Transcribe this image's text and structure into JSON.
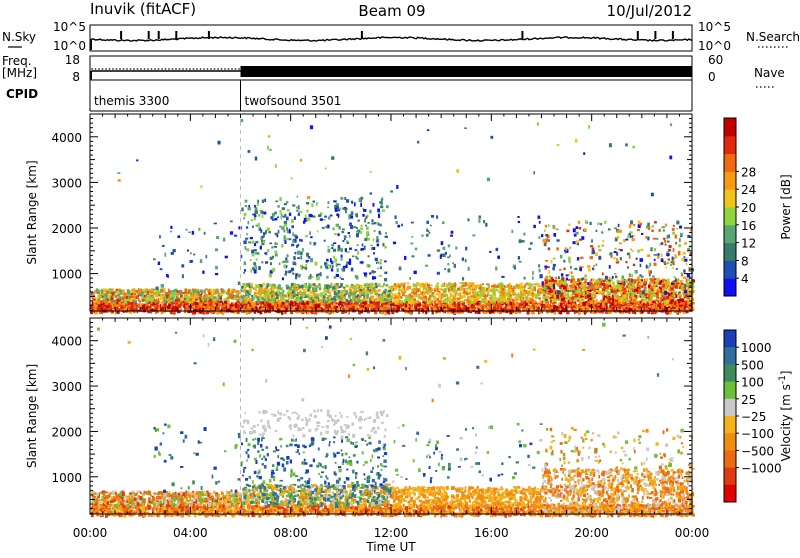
{
  "header": {
    "station": "Inuvik (fitACF)",
    "beam": "Beam 09",
    "date": "10/Jul/2012"
  },
  "strips": {
    "nsky": {
      "left_label": "N.Sky",
      "right_label": "N.Search",
      "left_ticks": [
        "10^5",
        "10^0"
      ],
      "right_ticks": [
        "10^5",
        "10^0"
      ]
    },
    "freq": {
      "left_label_line1": "Freq.",
      "left_label_line2": "[MHz]",
      "right_label": "Nave",
      "left_ticks": [
        "18",
        "8"
      ],
      "right_ticks": [
        "60",
        "0"
      ]
    },
    "cpid": {
      "label": "CPID",
      "modes": [
        {
          "name": "themis 3300",
          "start_hour": 0
        },
        {
          "name": "twofsound 3501",
          "start_hour": 6
        }
      ]
    }
  },
  "chart_data": [
    {
      "type": "heatmap",
      "parameter": "Power",
      "ylabel": "Slant Range [km]",
      "ylim": [
        180,
        4500
      ],
      "yticks": [
        1000,
        2000,
        3000,
        4000
      ],
      "xlim_hours": [
        0,
        24
      ],
      "colorbar": {
        "label": "Power [dB]",
        "tick_labels": [
          "4",
          "8",
          "12",
          "16",
          "20",
          "24",
          "28"
        ],
        "colors": [
          "#1010f0",
          "#1d4fb5",
          "#3a7a6a",
          "#56a870",
          "#8fd440",
          "#f0c419",
          "#f59a12",
          "#ef6a10",
          "#e02a10",
          "#c00000"
        ]
      },
      "features": [
        {
          "hours": [
            0,
            24
          ],
          "range_km": [
            180,
            700
          ],
          "level_db": "20-28"
        },
        {
          "hours": [
            6,
            11.8
          ],
          "range_km": [
            700,
            2700
          ],
          "level_db": "8-16"
        },
        {
          "hours": [
            18,
            24
          ],
          "range_km": [
            500,
            2200
          ],
          "level_db": "8-24"
        }
      ]
    },
    {
      "type": "heatmap",
      "parameter": "Velocity",
      "ylabel": "Slant Range [km]",
      "ylim": [
        180,
        4500
      ],
      "yticks": [
        1000,
        2000,
        3000,
        4000
      ],
      "xlim_hours": [
        0,
        24
      ],
      "colorbar": {
        "label": "Velocity [m s",
        "label_exp": "-1",
        "label_end": "]",
        "tick_labels": [
          "1000",
          "500",
          "100",
          "25",
          "−25",
          "−100",
          "−500",
          "−1000"
        ],
        "colors": [
          "#1a3fb8",
          "#2f6f9f",
          "#3f8c5a",
          "#6bbf3a",
          "#c8c8c8",
          "#f5b21a",
          "#f08c12",
          "#ec6a12",
          "#e03a10",
          "#e00000"
        ]
      },
      "features": [
        {
          "hours": [
            0,
            24
          ],
          "range_km": [
            180,
            700
          ],
          "level_ms": "-100 to -500"
        },
        {
          "hours": [
            6,
            11.8
          ],
          "range_km": [
            1800,
            2500
          ],
          "level_ms": "-25 to 25"
        },
        {
          "hours": [
            6,
            11.8
          ],
          "range_km": [
            700,
            1800
          ],
          "level_ms": "25 to 500"
        }
      ]
    }
  ],
  "xaxis": {
    "tick_labels": [
      "00:00",
      "04:00",
      "08:00",
      "12:00",
      "16:00",
      "20:00",
      "00:00"
    ],
    "label": "Time UT"
  }
}
